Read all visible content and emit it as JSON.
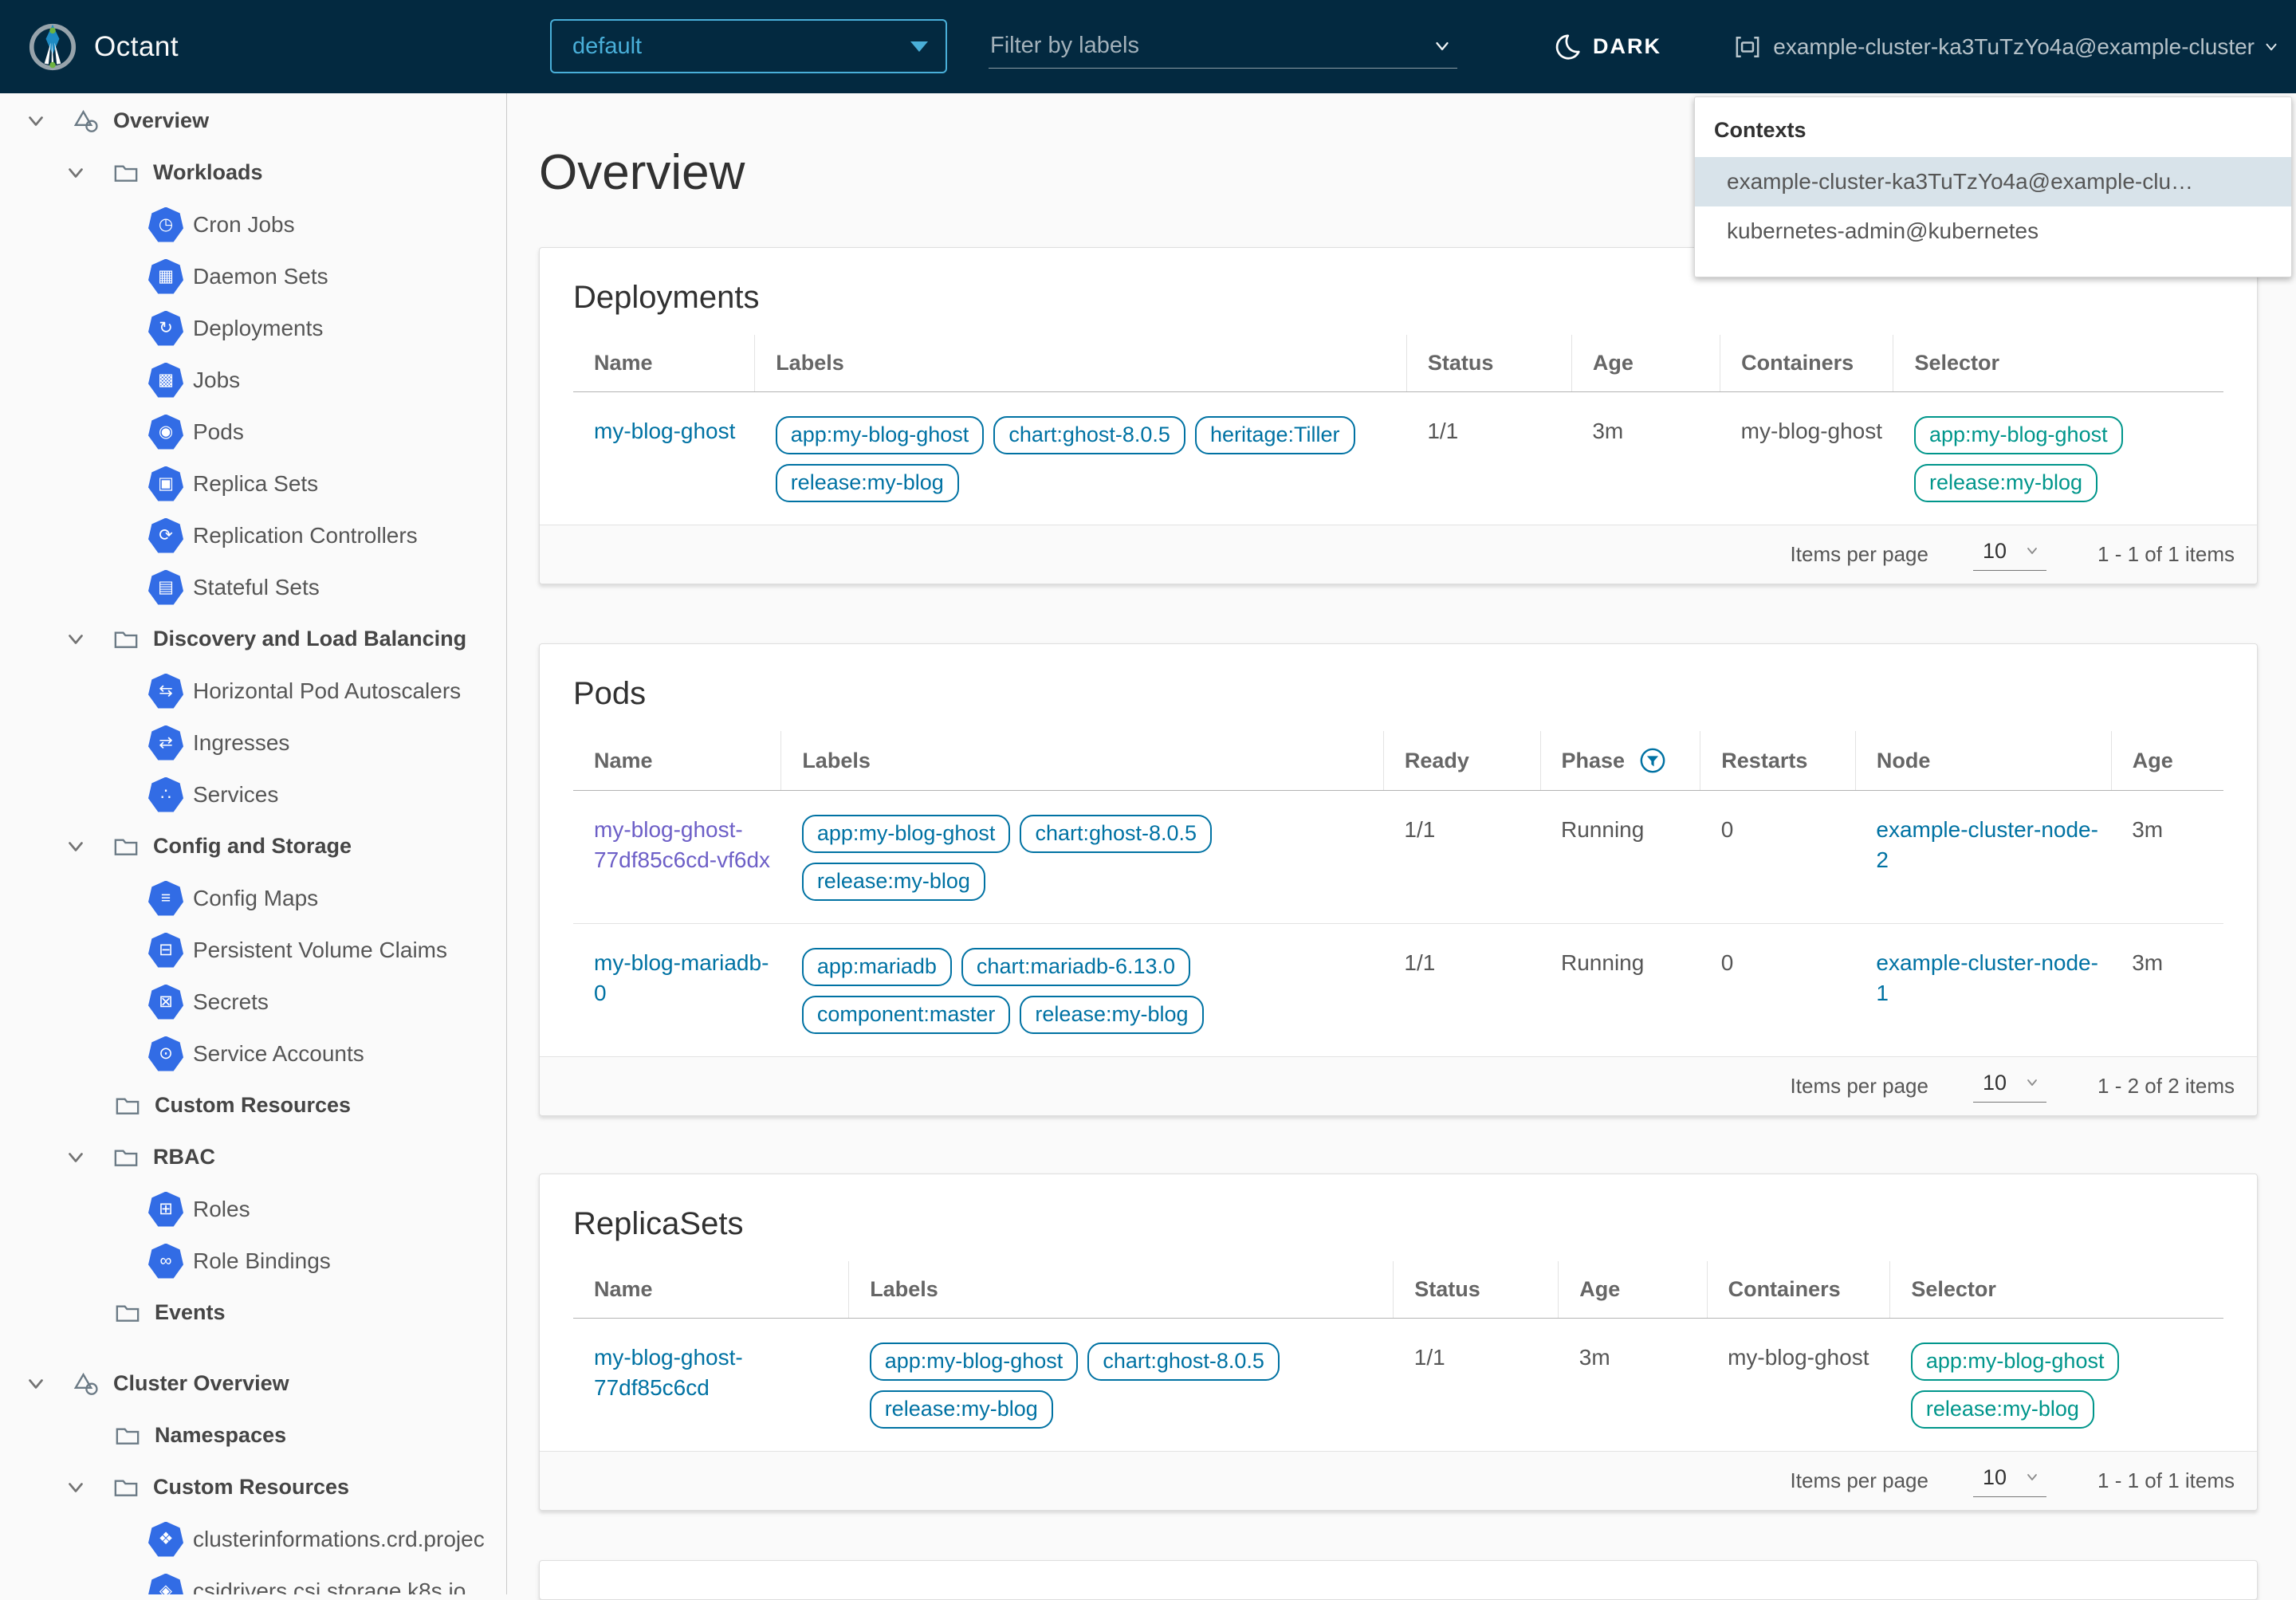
{
  "header": {
    "app_title": "Octant",
    "namespace_selected": "default",
    "filter_placeholder": "Filter by labels",
    "theme_toggle_label": "DARK",
    "context_current": "example-cluster-ka3TuTzYo4a@example-cluster"
  },
  "contexts_menu": {
    "title": "Contexts",
    "items": [
      {
        "label": "example-cluster-ka3TuTzYo4a@example-clu…",
        "selected": true
      },
      {
        "label": "kubernetes-admin@kubernetes",
        "selected": false
      }
    ]
  },
  "colors": {
    "header_bg": "#032940",
    "accent_blue": "#49afd9",
    "link_blue": "#0072a3",
    "visited_purple": "#6d5fc7",
    "selector_teal": "#00968b",
    "k8s_icon_blue": "#326ce5"
  },
  "sidebar": {
    "items": [
      {
        "type": "root",
        "label": "Overview",
        "icon": "objects-icon"
      },
      {
        "type": "group",
        "label": "Workloads",
        "icon": "folder-icon"
      },
      {
        "type": "leaf",
        "label": "Cron Jobs",
        "icon": "cronjobs-icon",
        "glyph": "◷"
      },
      {
        "type": "leaf",
        "label": "Daemon Sets",
        "icon": "daemonsets-icon",
        "glyph": "▦"
      },
      {
        "type": "leaf",
        "label": "Deployments",
        "icon": "deployments-icon",
        "glyph": "↻"
      },
      {
        "type": "leaf",
        "label": "Jobs",
        "icon": "jobs-icon",
        "glyph": "▩"
      },
      {
        "type": "leaf",
        "label": "Pods",
        "icon": "pods-icon",
        "glyph": "◉"
      },
      {
        "type": "leaf",
        "label": "Replica Sets",
        "icon": "replicasets-icon",
        "glyph": "▣"
      },
      {
        "type": "leaf",
        "label": "Replication Controllers",
        "icon": "replicationcontrollers-icon",
        "glyph": "⟳"
      },
      {
        "type": "leaf",
        "label": "Stateful Sets",
        "icon": "statefulsets-icon",
        "glyph": "▤"
      },
      {
        "type": "group",
        "label": "Discovery and Load Balancing",
        "icon": "folder-icon"
      },
      {
        "type": "leaf",
        "label": "Horizontal Pod Autoscalers",
        "icon": "hpa-icon",
        "glyph": "⇆"
      },
      {
        "type": "leaf",
        "label": "Ingresses",
        "icon": "ingresses-icon",
        "glyph": "⇄"
      },
      {
        "type": "leaf",
        "label": "Services",
        "icon": "services-icon",
        "glyph": "∴"
      },
      {
        "type": "group",
        "label": "Config and Storage",
        "icon": "folder-icon"
      },
      {
        "type": "leaf",
        "label": "Config Maps",
        "icon": "configmaps-icon",
        "glyph": "≡"
      },
      {
        "type": "leaf",
        "label": "Persistent Volume Claims",
        "icon": "pvc-icon",
        "glyph": "⊟"
      },
      {
        "type": "leaf",
        "label": "Secrets",
        "icon": "secrets-icon",
        "glyph": "⊠"
      },
      {
        "type": "leaf",
        "label": "Service Accounts",
        "icon": "serviceaccounts-icon",
        "glyph": "⊙"
      },
      {
        "type": "groupx",
        "label": "Custom Resources",
        "icon": "folder-icon"
      },
      {
        "type": "group",
        "label": "RBAC",
        "icon": "folder-icon"
      },
      {
        "type": "leaf",
        "label": "Roles",
        "icon": "roles-icon",
        "glyph": "⊞"
      },
      {
        "type": "leaf",
        "label": "Role Bindings",
        "icon": "rolebindings-icon",
        "glyph": "∞"
      },
      {
        "type": "groupx",
        "label": "Events",
        "icon": "folder-icon"
      },
      {
        "type": "gap"
      },
      {
        "type": "root",
        "label": "Cluster Overview",
        "icon": "objects-icon"
      },
      {
        "type": "groupx",
        "label": "Namespaces",
        "icon": "folder-icon"
      },
      {
        "type": "group",
        "label": "Custom Resources",
        "icon": "folder-icon"
      },
      {
        "type": "leaf",
        "label": "clusterinformations.crd.projec",
        "icon": "custom-resource-icon",
        "glyph": "❖"
      },
      {
        "type": "leaf",
        "label": "csidrivers.csi.storage.k8s.io",
        "icon": "custom-resource-icon",
        "glyph": "◈"
      }
    ]
  },
  "page": {
    "title": "Overview"
  },
  "cards": {
    "deployments": {
      "title": "Deployments",
      "columns": [
        "Name",
        "Labels",
        "Status",
        "Age",
        "Containers",
        "Selector"
      ],
      "rows": [
        {
          "name": "my-blog-ghost",
          "labels": [
            "app:my-blog-ghost",
            "chart:ghost-8.0.5",
            "heritage:Tiller",
            "release:my-blog"
          ],
          "status": "1/1",
          "age": "3m",
          "containers": "my-blog-ghost",
          "selector": [
            "app:my-blog-ghost",
            "release:my-blog"
          ]
        }
      ],
      "footer": {
        "items_per_page_label": "Items per page",
        "page_size": "10",
        "range": "1 - 1 of 1 items"
      }
    },
    "pods": {
      "title": "Pods",
      "columns": [
        "Name",
        "Labels",
        "Ready",
        "Phase",
        "Restarts",
        "Node",
        "Age"
      ],
      "rows": [
        {
          "name": "my-blog-ghost-77df85c6cd-vf6dx",
          "labels": [
            "app:my-blog-ghost",
            "chart:ghost-8.0.5",
            "release:my-blog"
          ],
          "ready": "1/1",
          "phase": "Running",
          "restarts": "0",
          "node": "example-cluster-node-2",
          "age": "3m"
        },
        {
          "name": "my-blog-mariadb-0",
          "labels": [
            "app:mariadb",
            "chart:mariadb-6.13.0",
            "component:master",
            "release:my-blog"
          ],
          "ready": "1/1",
          "phase": "Running",
          "restarts": "0",
          "node": "example-cluster-node-1",
          "age": "3m"
        }
      ],
      "footer": {
        "items_per_page_label": "Items per page",
        "page_size": "10",
        "range": "1 - 2 of 2 items"
      }
    },
    "replicasets": {
      "title": "ReplicaSets",
      "columns": [
        "Name",
        "Labels",
        "Status",
        "Age",
        "Containers",
        "Selector"
      ],
      "rows": [
        {
          "name": "my-blog-ghost-77df85c6cd",
          "labels": [
            "app:my-blog-ghost",
            "chart:ghost-8.0.5",
            "release:my-blog"
          ],
          "status": "1/1",
          "age": "3m",
          "containers": "my-blog-ghost",
          "selector": [
            "app:my-blog-ghost",
            "release:my-blog"
          ]
        }
      ],
      "footer": {
        "items_per_page_label": "Items per page",
        "page_size": "10",
        "range": "1 - 1 of 1 items"
      }
    }
  }
}
